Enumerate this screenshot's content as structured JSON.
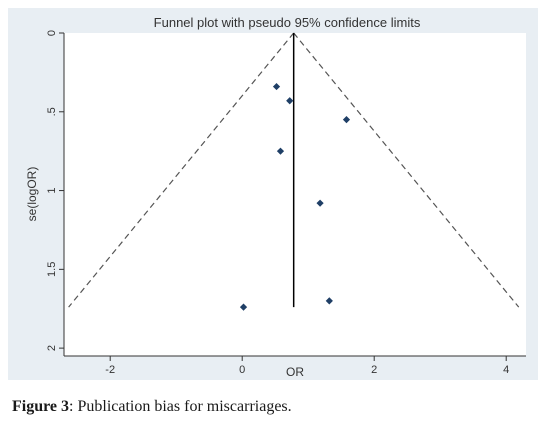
{
  "caption": {
    "label": "Figure 3",
    "text": ": Publication bias for miscarriages."
  },
  "chart_data": {
    "type": "scatter",
    "title": "Funnel plot with pseudo 95% confidence limits",
    "xlabel": "OR",
    "ylabel": "se(logOR)",
    "xlim": [
      -2.7,
      4.3
    ],
    "ylim": [
      0,
      2.05
    ],
    "y_inverted": true,
    "x_ticks": [
      -2,
      0,
      2,
      4
    ],
    "x_tick_labels": [
      "-2",
      "0",
      "2",
      "4"
    ],
    "y_ticks": [
      0,
      0.5,
      1,
      1.5,
      2
    ],
    "y_tick_labels": [
      "0",
      ".5",
      "1",
      "1.5",
      "2"
    ],
    "grid": false,
    "points": [
      {
        "x": 0.52,
        "y": 0.34
      },
      {
        "x": 0.72,
        "y": 0.43
      },
      {
        "x": 1.58,
        "y": 0.55
      },
      {
        "x": 0.58,
        "y": 0.75
      },
      {
        "x": 1.18,
        "y": 1.08
      },
      {
        "x": 1.32,
        "y": 1.7
      },
      {
        "x": 0.02,
        "y": 1.74
      }
    ],
    "pooled_effect": 0.78,
    "pooled_line_ymax": 1.74,
    "ci_apex": {
      "x": 0.78,
      "y": 0
    },
    "ci_left_end": {
      "x": -2.63,
      "y": 1.74
    },
    "ci_right_end": {
      "x": 4.19,
      "y": 1.74
    },
    "colors": {
      "panel_bg": "#e8eef3",
      "plot_bg": "#ffffff",
      "marker": "#1f3f66",
      "line": "#000000",
      "ci_line": "#555555"
    }
  }
}
